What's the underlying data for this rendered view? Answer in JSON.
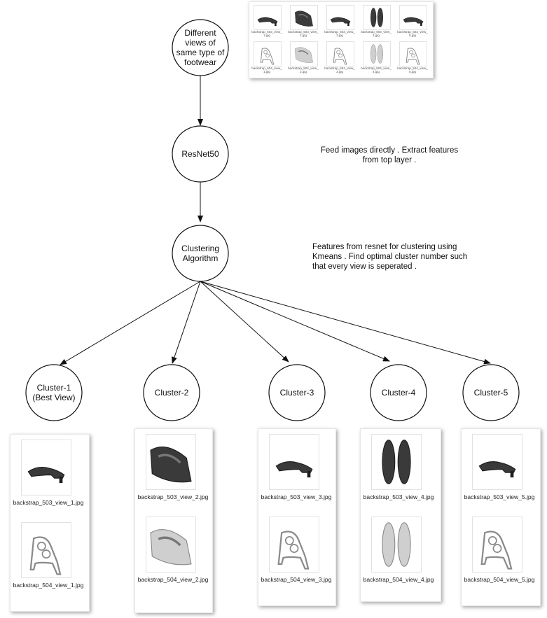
{
  "nodes": {
    "views": "Different views of same type of footwear",
    "resnet": "ResNet50",
    "clustering": "Clustering Algorithm",
    "clusters": [
      "Cluster-1 (Best View)",
      "Cluster-2",
      "Cluster-3",
      "Cluster-4",
      "Cluster-5"
    ]
  },
  "notes": {
    "resnet_note": "Feed images directly . Extract features from top layer .",
    "clustering_note": "Features from resnet for clustering using Kmeans . Find optimal cluster number such that every view is seperated ."
  },
  "cluster_files": [
    [
      "backstrap_503_view_1.jpg",
      "backstrap_504_view_1.jpg"
    ],
    [
      "backstrap_503_view_2.jpg",
      "backstrap_504_view_2.jpg"
    ],
    [
      "backstrap_503_view_3.jpg",
      "backstrap_504_view_3.jpg"
    ],
    [
      "backstrap_503_view_4.jpg",
      "backstrap_504_view_4.jpg"
    ],
    [
      "backstrap_503_view_5.jpg",
      "backstrap_504_view_5.jpg"
    ]
  ],
  "top_thumbnails": [
    "backstrap_503_view_1.jpg",
    "backstrap_503_view_2.jpg",
    "backstrap_503_view_3.jpg",
    "backstrap_503_view_4.jpg",
    "backstrap_503_view_5.jpg",
    "backstrap_504_view_1.jpg",
    "backstrap_504_view_2.jpg",
    "backstrap_504_view_3.jpg",
    "backstrap_504_view_4.jpg",
    "backstrap_504_view_5.jpg"
  ]
}
